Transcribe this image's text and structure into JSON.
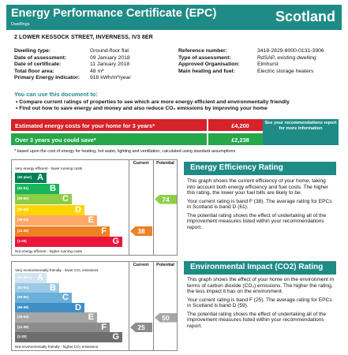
{
  "header": {
    "title": "Energy Performance Certificate (EPC)",
    "subtitle": "Dwellings",
    "region": "Scotland"
  },
  "address": "2 LOWER KESSOCK STREET, INVERNESS, IV3 8ER",
  "details_left": [
    {
      "label": "Dwelling type:",
      "value": "Ground-floor flat"
    },
    {
      "label": "Date of assessment:",
      "value": "09 January 2018"
    },
    {
      "label": "Date of certificate:",
      "value": "11 January 2018"
    },
    {
      "label": "Total floor area:",
      "value": "48 m²"
    },
    {
      "label": "Primary Energy Indicator:",
      "value": "918 kWh/m²/year"
    }
  ],
  "details_right": [
    {
      "label": "Reference number:",
      "value": "3418-2829-8000-0131-3906"
    },
    {
      "label": "Type of assessment:",
      "value": "RdSAP, existing dwelling"
    },
    {
      "label": "Approved Organisation:",
      "value": "Elmhurst"
    },
    {
      "label": "Main heating and fuel:",
      "value": "Electric storage heaters"
    }
  ],
  "use_title": "You can use this document to:",
  "bullets": [
    "•  Compare current ratings of properties to see which are more energy efficient and environmentally friendly",
    "•  Find out how to save energy and money and also reduce CO₂ emissions by improving your home"
  ],
  "costs": {
    "estimated_label": "Estimated energy costs for your home for 3 years*",
    "estimated_value": "£4,200",
    "savings_label": "Over 3 years you could save*",
    "savings_value": "£2,238",
    "note": "See your recommendations report for more information",
    "footnote": "* based upon the cost of energy for heating, hot water, lighting and ventilation, calculated using standard assumptions"
  },
  "colors": {
    "teal": "#1f8b86",
    "red": "#d62229",
    "green": "#26a74a"
  },
  "ee_chart": {
    "top_label": "Very energy efficient - lower running costs",
    "bottom_label": "Not energy efficient - higher running costs",
    "col_current": "Current",
    "col_potential": "Potential",
    "bands": [
      {
        "range": "(92 plus)",
        "letter": "A",
        "color": "#008054"
      },
      {
        "range": "(81-91)",
        "letter": "B",
        "color": "#19b459"
      },
      {
        "range": "(69-80)",
        "letter": "C",
        "color": "#8dce46"
      },
      {
        "range": "(55-68)",
        "letter": "D",
        "color": "#ffd500"
      },
      {
        "range": "(39-54)",
        "letter": "E",
        "color": "#fcaa65"
      },
      {
        "range": "(21-38)",
        "letter": "F",
        "color": "#ef8023"
      },
      {
        "range": "(1-20)",
        "letter": "G",
        "color": "#e9153b"
      }
    ],
    "current": {
      "value": "38",
      "band": "F",
      "color": "#ef8023"
    },
    "potential": {
      "value": "74",
      "band": "C",
      "color": "#8dce46"
    }
  },
  "ei_chart": {
    "top_label": "Very environmentally friendly - lower CO₂ emissions",
    "bottom_label": "Not environmentally friendly - higher CO₂ emissions",
    "col_current": "Current",
    "col_potential": "Potential",
    "bands": [
      {
        "range": "(92 plus)",
        "letter": "A",
        "color": "#cfe3f2"
      },
      {
        "range": "(81-91)",
        "letter": "B",
        "color": "#9cc9e6"
      },
      {
        "range": "(69-80)",
        "letter": "C",
        "color": "#6bafdb"
      },
      {
        "range": "(55-68)",
        "letter": "D",
        "color": "#3f8fc4"
      },
      {
        "range": "(39-54)",
        "letter": "E",
        "color": "#a6a6a6"
      },
      {
        "range": "(21-38)",
        "letter": "F",
        "color": "#8c8c8c"
      },
      {
        "range": "(1-20)",
        "letter": "G",
        "color": "#6e6e6e"
      }
    ],
    "current": {
      "value": "25",
      "band": "F",
      "color": "#8c8c8c"
    },
    "potential": {
      "value": "50",
      "band": "E",
      "color": "#a6a6a6"
    }
  },
  "ee_panel": {
    "title": "Energy Efficiency Rating",
    "p1": "This graph shows the current efficiency of your home, taking into account both energy efficiency and fuel costs. The higher this rating, the lower your fuel bills are likely to be.",
    "p2": "Your current rating is band F (38). The average rating for EPCs in Scotland is band D (61).",
    "p3": "The potential rating shows the effect of undertaking all of the improvement measures listed within your recommendations report."
  },
  "ei_panel": {
    "title": "Environmental Impact (CO2) Rating",
    "p1": "This graph shows the effect of your home on the environment in terms of carbon dioxide (CO₂) emissions. The higher the rating, the less impact it has on the environment.",
    "p2": "Your current rating is band F (25). The average rating for EPCs in Scotland is band D (59).",
    "p3": "The potential rating shows the effect of undertaking all of the improvement measures listed within your recommendations report."
  }
}
